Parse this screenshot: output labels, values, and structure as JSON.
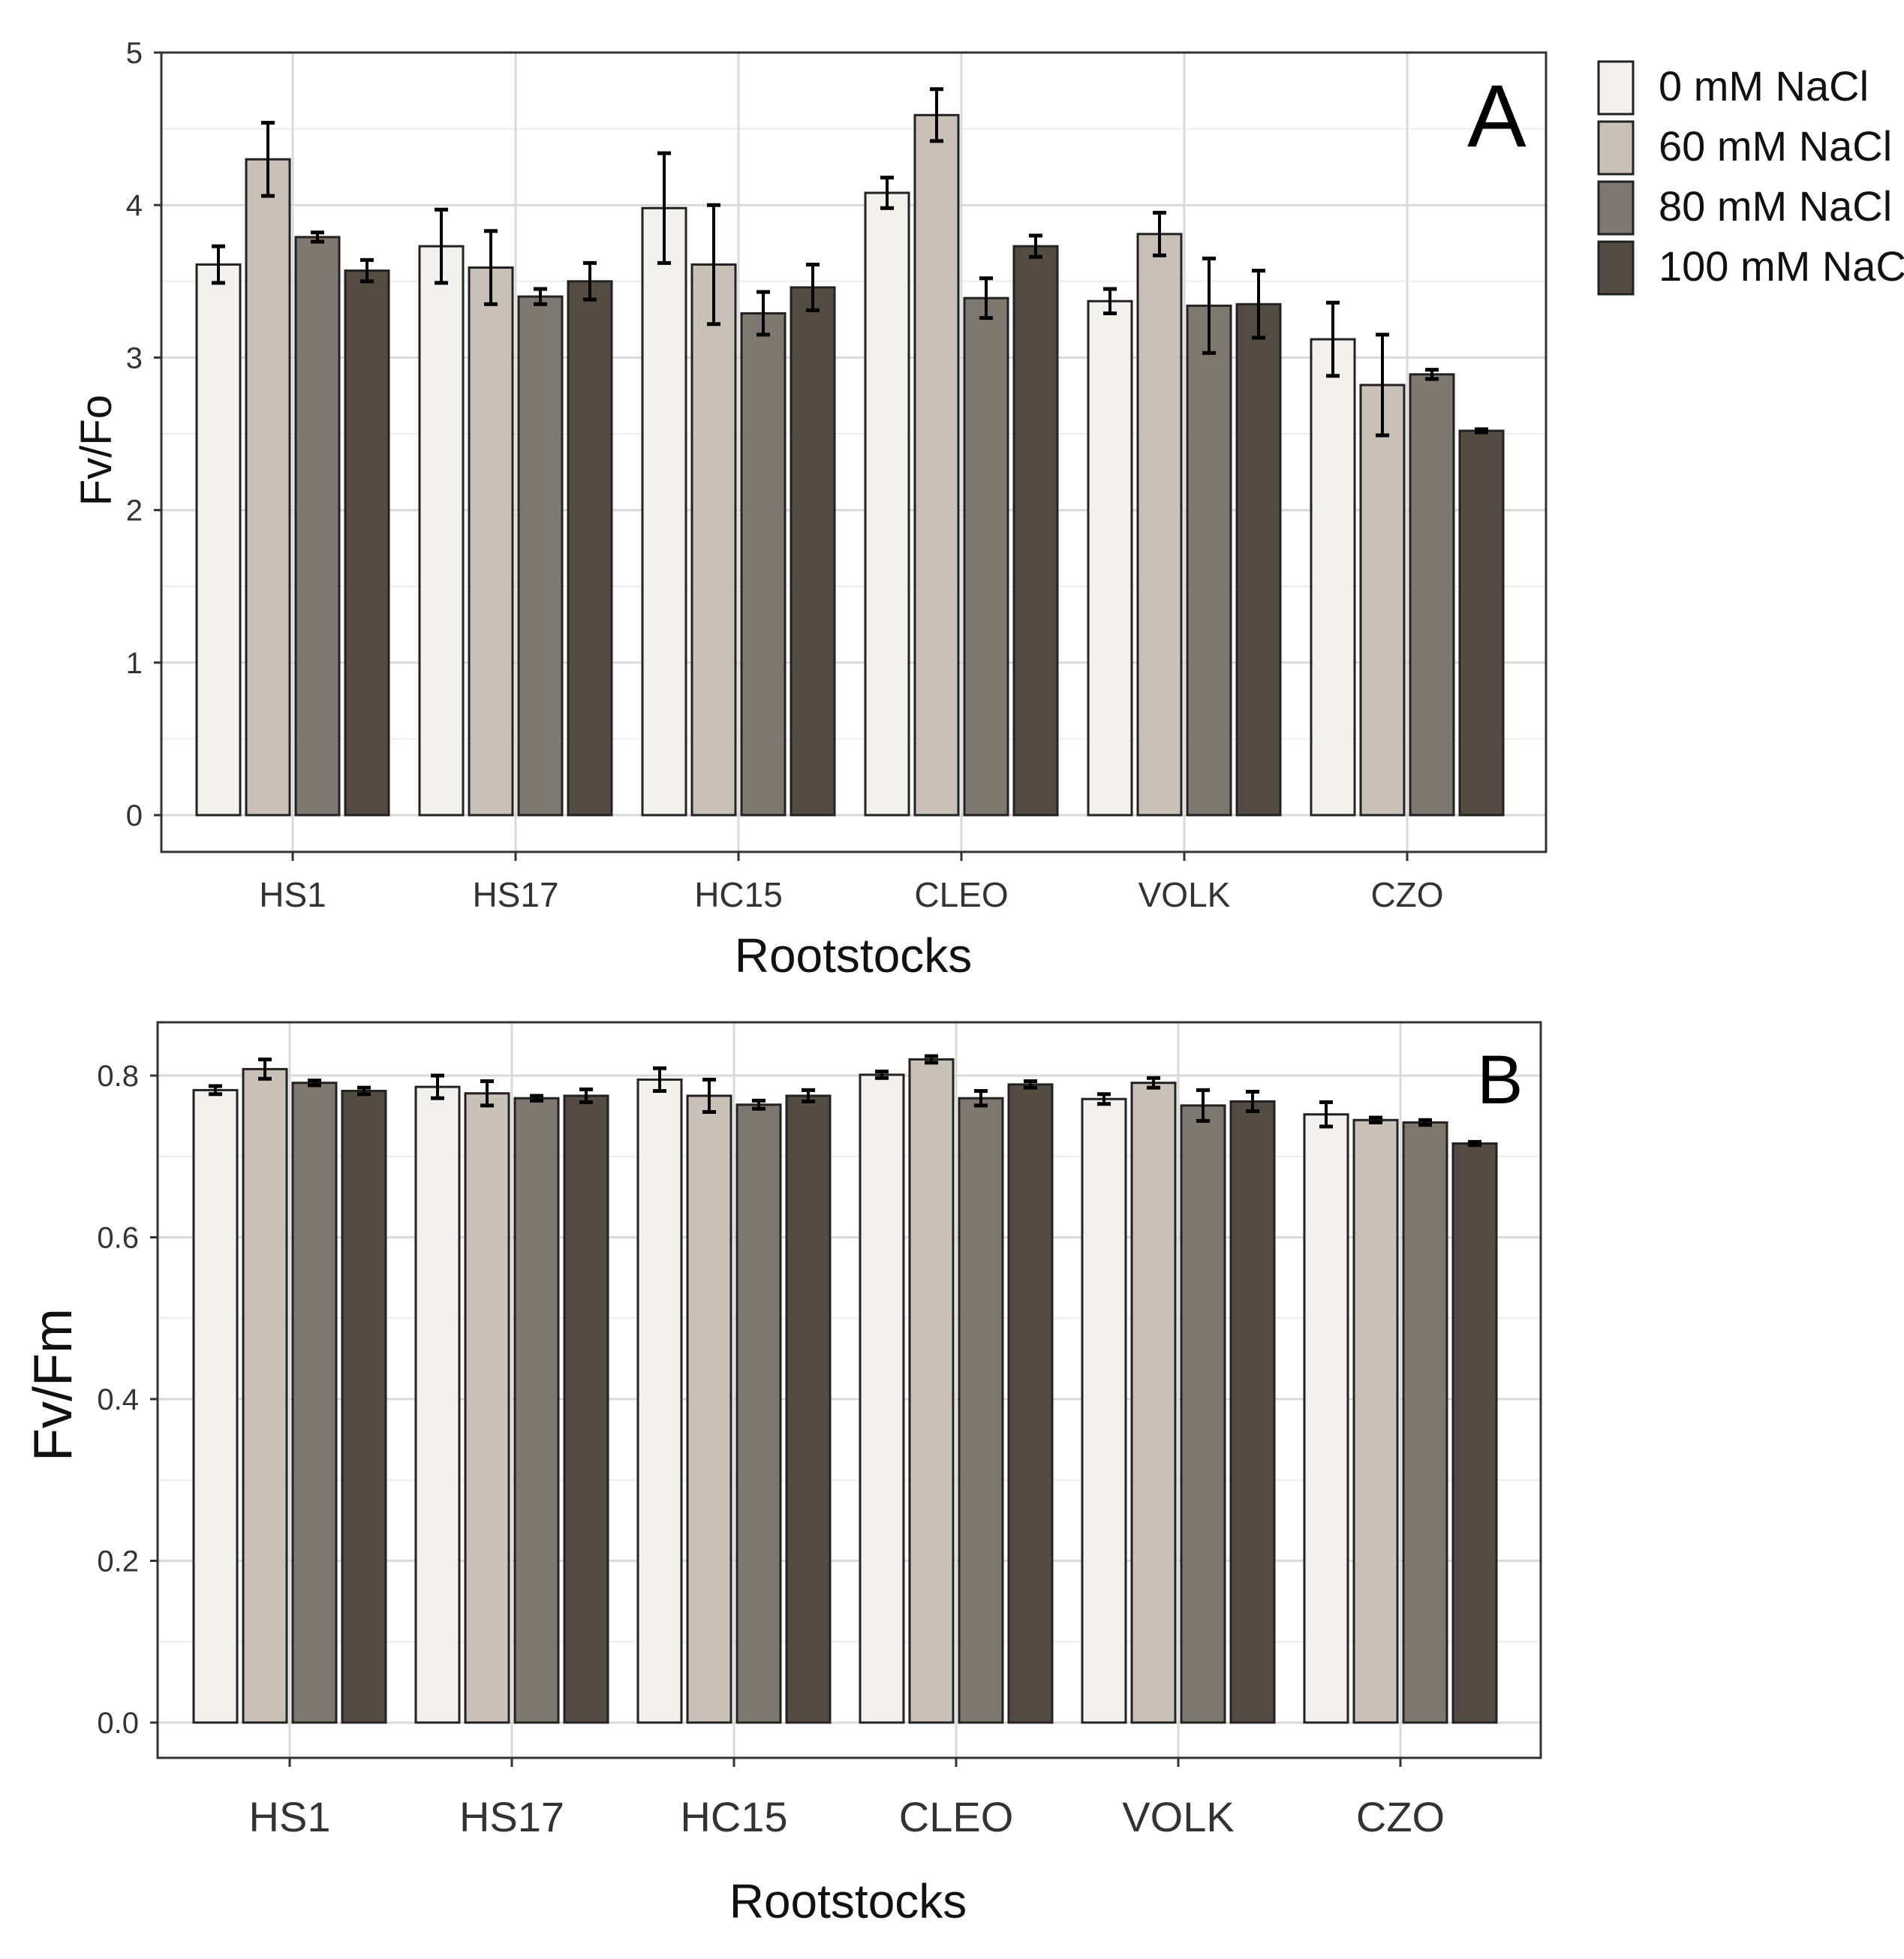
{
  "colors": {
    "series": [
      "#f3f1ee",
      "#c9c1b8",
      "#7e7870",
      "#544b42"
    ],
    "grid": "#dddddd",
    "border": "#333333",
    "error_bar": "#000000"
  },
  "legend": {
    "placement": "right",
    "entries": [
      "0 mM NaCl",
      "60 mM NaCl",
      "80 mM NaCl",
      "100 mM NaCl"
    ]
  },
  "chart_data": [
    {
      "panel": "A",
      "type": "bar",
      "xlabel": "Rootstocks",
      "ylabel": "Fv/Fo",
      "ylim": [
        0,
        5
      ],
      "yticks": [
        "0",
        "1",
        "2",
        "3",
        "4",
        "5"
      ],
      "grid": true,
      "categories": [
        "HS1",
        "HS17",
        "HC15",
        "CLEO",
        "VOLK",
        "CZO"
      ],
      "series": [
        {
          "name": "0 mM NaCl",
          "values": [
            3.61,
            3.73,
            3.98,
            4.08,
            3.37,
            3.12
          ],
          "errors": [
            0.12,
            0.24,
            0.36,
            0.1,
            0.08,
            0.24
          ]
        },
        {
          "name": "60 mM NaCl",
          "values": [
            4.3,
            3.59,
            3.61,
            4.59,
            3.81,
            2.82
          ],
          "errors": [
            0.24,
            0.24,
            0.39,
            0.17,
            0.14,
            0.33
          ]
        },
        {
          "name": "80 mM NaCl",
          "values": [
            3.79,
            3.4,
            3.29,
            3.39,
            3.34,
            2.89
          ],
          "errors": [
            0.03,
            0.05,
            0.14,
            0.13,
            0.31,
            0.03
          ]
        },
        {
          "name": "100 mM NaCl",
          "values": [
            3.57,
            3.5,
            3.46,
            3.73,
            3.35,
            2.52
          ],
          "errors": [
            0.07,
            0.12,
            0.15,
            0.07,
            0.22,
            0.01
          ]
        }
      ]
    },
    {
      "panel": "B",
      "type": "bar",
      "xlabel": "Rootstocks",
      "ylabel": "Fv/Fm",
      "ylim": [
        0,
        0.85
      ],
      "yticks": [
        "0.0",
        "0.2",
        "0.4",
        "0.6",
        "0.8"
      ],
      "grid": true,
      "categories": [
        "HS1",
        "HS17",
        "HC15",
        "CLEO",
        "VOLK",
        "CZO"
      ],
      "series": [
        {
          "name": "0 mM NaCl",
          "values": [
            0.782,
            0.786,
            0.795,
            0.801,
            0.771,
            0.752
          ],
          "errors": [
            0.005,
            0.014,
            0.014,
            0.004,
            0.006,
            0.015
          ]
        },
        {
          "name": "60 mM NaCl",
          "values": [
            0.808,
            0.778,
            0.775,
            0.82,
            0.791,
            0.745
          ],
          "errors": [
            0.012,
            0.015,
            0.02,
            0.004,
            0.006,
            0.003
          ]
        },
        {
          "name": "80 mM NaCl",
          "values": [
            0.791,
            0.772,
            0.764,
            0.772,
            0.763,
            0.742
          ],
          "errors": [
            0.003,
            0.003,
            0.005,
            0.009,
            0.019,
            0.003
          ]
        },
        {
          "name": "100 mM NaCl",
          "values": [
            0.781,
            0.775,
            0.775,
            0.789,
            0.768,
            0.716
          ],
          "errors": [
            0.004,
            0.008,
            0.007,
            0.004,
            0.012,
            0.002
          ]
        }
      ]
    }
  ]
}
